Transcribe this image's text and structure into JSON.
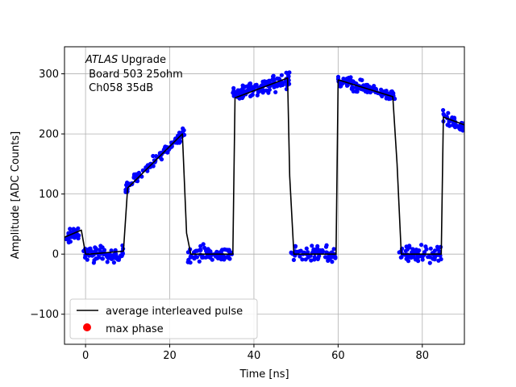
{
  "chart_data": {
    "type": "scatter",
    "xlabel": "Time [ns]",
    "ylabel": "Amplitude [ADC Counts]",
    "xlim": [
      -5,
      90
    ],
    "ylim": [
      -150,
      345
    ],
    "xticks": [
      0,
      20,
      40,
      60,
      80
    ],
    "yticks": [
      -100,
      0,
      100,
      200,
      300
    ],
    "xtick_labels": [
      "0",
      "20",
      "40",
      "60",
      "80"
    ],
    "ytick_labels": [
      "−100",
      "0",
      "100",
      "200",
      "300"
    ],
    "grid": true,
    "legend_position": "lower-left",
    "annotation": {
      "line1_italic": "ATLAS",
      "line1_rest": " Upgrade",
      "line2": " Board 503 25ohm",
      "line3": " Ch058 35dB"
    },
    "colors": {
      "samples": "#0000ff",
      "average": "#000000",
      "max_phase": "#ff0000",
      "grid": "#b0b0b0"
    },
    "series": [
      {
        "name": "average interleaved pulse",
        "kind": "line",
        "x": [
          -5,
          -1,
          0,
          1,
          9,
          10,
          23,
          24,
          25,
          35,
          35.5,
          48,
          48.5,
          49.5,
          59.5,
          60,
          73,
          74,
          75,
          84.5,
          85,
          90
        ],
        "y": [
          28,
          40,
          0,
          0,
          5,
          110,
          200,
          35,
          0,
          0,
          260,
          293,
          130,
          0,
          0,
          290,
          262,
          150,
          0,
          0,
          228,
          215
        ]
      },
      {
        "name": "max phase",
        "kind": "point",
        "x": [],
        "y": []
      }
    ],
    "sample_segments": [
      {
        "x0": -5,
        "x1": -1,
        "y0": 25,
        "y1": 38,
        "n": 30,
        "spread": 8
      },
      {
        "x0": -0.5,
        "x1": 9,
        "y0": 0,
        "y1": 0,
        "n": 75,
        "spread": 9
      },
      {
        "x0": 9.5,
        "x1": 23.5,
        "y0": 110,
        "y1": 203,
        "n": 110,
        "spread": 6
      },
      {
        "x0": 24.3,
        "x1": 34.8,
        "y0": 0,
        "y1": 0,
        "n": 80,
        "spread": 9
      },
      {
        "x0": 35,
        "x1": 48.5,
        "y0": 265,
        "y1": 292,
        "n": 130,
        "spread": 9
      },
      {
        "x0": 48.8,
        "x1": 59.5,
        "y0": 0,
        "y1": 0,
        "n": 80,
        "spread": 9
      },
      {
        "x0": 59.8,
        "x1": 73.5,
        "y0": 288,
        "y1": 263,
        "n": 125,
        "spread": 7
      },
      {
        "x0": 74.5,
        "x1": 84.5,
        "y0": 0,
        "y1": 0,
        "n": 75,
        "spread": 9
      },
      {
        "x0": 84.8,
        "x1": 90,
        "y0": 228,
        "y1": 212,
        "n": 45,
        "spread": 7
      }
    ]
  }
}
